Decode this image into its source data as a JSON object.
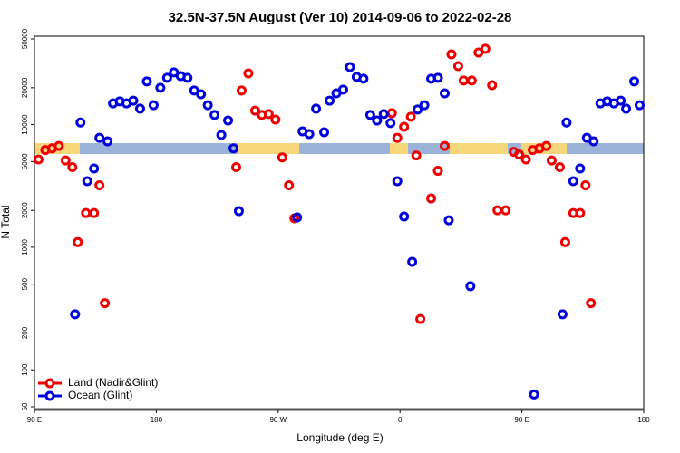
{
  "chart_data": {
    "type": "scatter",
    "title": "32.5N-37.5N August (Ver 10)   2014-09-06 to 2022-02-28",
    "xlabel": "Longitude (deg E)",
    "ylabel": "N Total",
    "xlim": [
      90,
      540
    ],
    "ylim": [
      47.5,
      52600
    ],
    "yscale": "log",
    "xticks": [
      {
        "value": 90,
        "label": "90 E"
      },
      180,
      {
        "value": 270,
        "label": "90 W"
      },
      {
        "value": 360,
        "label": "0"
      },
      {
        "value": 450,
        "label": "90 E"
      },
      {
        "value": 540,
        "label": "180"
      }
    ],
    "yticks": [
      50,
      100,
      200,
      500,
      1000,
      2000,
      5000,
      10000,
      20000,
      50000
    ],
    "legend": "bottom-left",
    "series": [
      {
        "name": "Land (Nadir&Glint)",
        "color": "#ee0000",
        "x": [
          93,
          98,
          103,
          108,
          113,
          118,
          122,
          128,
          134,
          138,
          142,
          239,
          243,
          248,
          253,
          258,
          263,
          268,
          273,
          278,
          282,
          354,
          358,
          363,
          368,
          372,
          375,
          383,
          388,
          393,
          398,
          403,
          407,
          413,
          418,
          423,
          428,
          432,
          438,
          444,
          448,
          453,
          458,
          463,
          468,
          472,
          478,
          482,
          488,
          493,
          497,
          501
        ],
        "values": [
          5200,
          6200,
          6400,
          6700,
          5100,
          4500,
          1100,
          1900,
          1900,
          3200,
          350,
          4500,
          19000,
          26200,
          13000,
          12000,
          12200,
          11000,
          5400,
          3200,
          1720,
          12400,
          7800,
          9600,
          11600,
          5600,
          260,
          2500,
          4200,
          6700,
          37400,
          30000,
          22900,
          22900,
          38700,
          41500,
          21000,
          2000,
          2000,
          6000,
          5700,
          5200,
          6200,
          6400,
          6700,
          5100,
          4500,
          1100,
          1900,
          1900,
          3200,
          350
        ]
      },
      {
        "name": "Ocean (Glint)",
        "color": "#0000dd",
        "x": [
          120,
          124,
          129,
          134,
          138,
          144,
          148,
          153,
          158,
          163,
          168,
          173,
          178,
          183,
          188,
          193,
          198,
          203,
          208,
          213,
          218,
          223,
          228,
          233,
          237,
          241,
          284,
          288,
          293,
          298,
          304,
          308,
          313,
          318,
          323,
          328,
          333,
          338,
          343,
          348,
          353,
          358,
          363,
          369,
          373,
          378,
          383,
          388,
          393,
          396,
          412,
          459,
          480,
          483,
          488,
          493,
          498,
          503,
          508,
          513,
          518,
          523,
          527,
          533,
          537
        ],
        "values": [
          284,
          10400,
          3460,
          4390,
          7800,
          7310,
          14900,
          15500,
          14900,
          15700,
          13500,
          22500,
          14400,
          20000,
          24100,
          26700,
          24900,
          24100,
          19000,
          17700,
          14400,
          12000,
          8240,
          10800,
          6400,
          1970,
          1750,
          8810,
          8380,
          13500,
          8670,
          15700,
          18000,
          19300,
          29500,
          24500,
          23700,
          12000,
          10800,
          12200,
          10300,
          3460,
          1780,
          760,
          13300,
          14400,
          23700,
          24100,
          18000,
          1660,
          481,
          63,
          284,
          10400,
          3460,
          4390,
          7800,
          7310,
          14900,
          15500,
          14900,
          15700,
          13500,
          22500,
          14400
        ]
      }
    ]
  }
}
